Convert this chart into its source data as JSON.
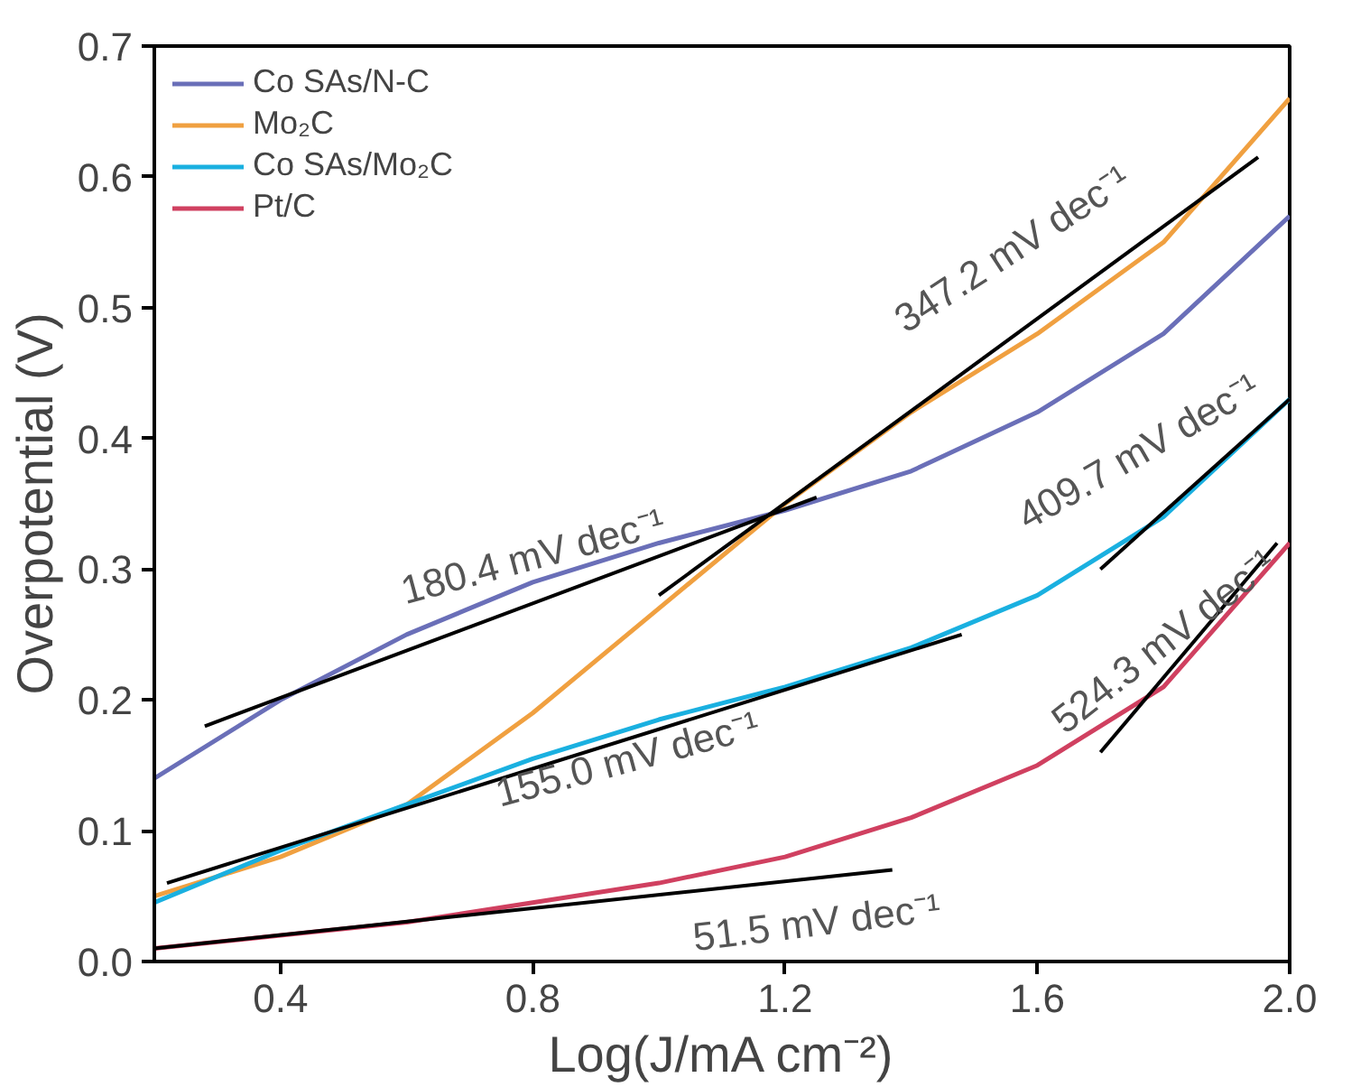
{
  "chart_data": {
    "type": "line",
    "xlabel": "Log(J/mA cm⁻²)",
    "ylabel": "Overpotential (V)",
    "x": [
      0.2,
      0.4,
      0.6,
      0.8,
      1.0,
      1.2,
      1.4,
      1.6,
      1.8,
      2.0
    ],
    "series": [
      {
        "name": "Co SAs/N-C",
        "color": "#6a6fb8",
        "values": [
          0.14,
          0.2,
          0.25,
          0.29,
          0.32,
          0.345,
          0.375,
          0.42,
          0.48,
          0.57
        ]
      },
      {
        "name": "Mo₂C",
        "color": "#f0a040",
        "values": [
          0.05,
          0.08,
          0.12,
          0.19,
          0.27,
          0.35,
          0.42,
          0.48,
          0.55,
          0.66
        ]
      },
      {
        "name": "Co SAs/Mo₂C",
        "color": "#1ab0e0",
        "values": [
          0.045,
          0.085,
          0.12,
          0.155,
          0.185,
          0.21,
          0.24,
          0.28,
          0.34,
          0.43
        ]
      },
      {
        "name": "Pt/C",
        "color": "#d04060",
        "values": [
          0.01,
          0.02,
          0.03,
          0.045,
          0.06,
          0.08,
          0.11,
          0.15,
          0.21,
          0.32
        ]
      },
      {
        "type": "line",
        "color": "#000000",
        "x": [
          0.28,
          1.25
        ],
        "values": [
          0.18,
          0.355
        ]
      },
      {
        "type": "line",
        "color": "#000000",
        "x": [
          1.0,
          1.95
        ],
        "values": [
          0.28,
          0.615
        ]
      },
      {
        "type": "line",
        "color": "#000000",
        "x": [
          0.22,
          1.48
        ],
        "values": [
          0.06,
          0.25
        ]
      },
      {
        "type": "line",
        "color": "#000000",
        "x": [
          1.7,
          2.0
        ],
        "values": [
          0.3,
          0.43
        ]
      },
      {
        "type": "line",
        "color": "#000000",
        "x": [
          0.2,
          1.37
        ],
        "values": [
          0.01,
          0.07
        ]
      },
      {
        "type": "line",
        "color": "#000000",
        "x": [
          1.7,
          1.98
        ],
        "values": [
          0.16,
          0.32
        ]
      }
    ],
    "annotations": [
      "180.4 mV dec⁻¹",
      "347.2 mV dec⁻¹",
      "409.7 mV dec⁻¹",
      "155.0 mV dec⁻¹",
      "524.3 mV dec⁻¹",
      "51.5 mV dec⁻¹"
    ],
    "xlim": [
      0.2,
      2.0
    ],
    "xticks": [
      0.4,
      0.8,
      1.2,
      1.6,
      {
        "value": 2.0,
        "label": "2.0"
      }
    ],
    "ylim": [
      0.0,
      0.7
    ],
    "yticks": [
      {
        "value": 0.0,
        "label": "0.0"
      },
      0.1,
      0.2,
      0.3,
      0.4,
      0.5,
      0.6,
      0.7
    ],
    "legend": "top left",
    "grid": false
  }
}
